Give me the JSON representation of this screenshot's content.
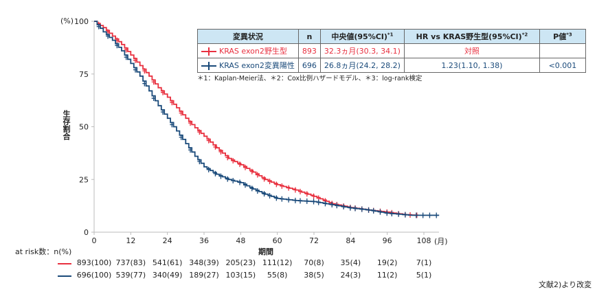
{
  "chart_data": {
    "type": "line",
    "subtype": "kaplan-meier",
    "xlabel": "期間",
    "x_unit": "(月)",
    "ylabel": "生存割合",
    "y_unit": "(%)",
    "xlim": [
      0,
      108
    ],
    "ylim": [
      0,
      100
    ],
    "xticks": [
      0,
      12,
      24,
      36,
      48,
      60,
      72,
      84,
      96,
      108
    ],
    "yticks": [
      0,
      25,
      50,
      75,
      100
    ],
    "grid": false,
    "series": [
      {
        "name": "KRAS exon2野生型",
        "color": "#e8303f",
        "points": [
          [
            0,
            100
          ],
          [
            3,
            97
          ],
          [
            6,
            93
          ],
          [
            9,
            89
          ],
          [
            12,
            84
          ],
          [
            15,
            79
          ],
          [
            18,
            74
          ],
          [
            21,
            68.5
          ],
          [
            24,
            64
          ],
          [
            27,
            59
          ],
          [
            30,
            54
          ],
          [
            33,
            49.5
          ],
          [
            36,
            45.5
          ],
          [
            40,
            40
          ],
          [
            44,
            35
          ],
          [
            48,
            32
          ],
          [
            52,
            28.5
          ],
          [
            56,
            25
          ],
          [
            60,
            22.5
          ],
          [
            66,
            20
          ],
          [
            72,
            17
          ],
          [
            78,
            13.5
          ],
          [
            84,
            11.7
          ],
          [
            90,
            10.5
          ],
          [
            96,
            9.5
          ],
          [
            102,
            8.3
          ],
          [
            106,
            8
          ]
        ]
      },
      {
        "name": "KRAS exon2変異陽性",
        "color": "#1a4a7a",
        "points": [
          [
            0,
            100
          ],
          [
            3,
            95
          ],
          [
            6,
            91
          ],
          [
            9,
            86
          ],
          [
            12,
            80
          ],
          [
            15,
            74
          ],
          [
            18,
            67
          ],
          [
            21,
            60
          ],
          [
            24,
            54
          ],
          [
            27,
            48
          ],
          [
            30,
            42
          ],
          [
            33,
            36
          ],
          [
            36,
            31
          ],
          [
            40,
            27.5
          ],
          [
            44,
            25
          ],
          [
            48,
            23.5
          ],
          [
            52,
            20.5
          ],
          [
            56,
            18
          ],
          [
            60,
            16
          ],
          [
            66,
            15
          ],
          [
            72,
            14.5
          ],
          [
            78,
            13
          ],
          [
            84,
            11.5
          ],
          [
            90,
            10.5
          ],
          [
            96,
            9
          ],
          [
            104,
            8
          ],
          [
            113,
            8
          ]
        ]
      }
    ]
  },
  "table": {
    "headers": [
      "変異状況",
      "n",
      "中央値(95%CI)",
      "HR vs KRAS野生型(95%CI)",
      "P値"
    ],
    "header_sups": [
      "",
      "",
      "*1",
      "*2",
      "*3"
    ],
    "rows": [
      {
        "label": "KRAS exon2野生型",
        "n": "893",
        "median": "32.3ヵ月(30.3, 34.1)",
        "hr": "対照",
        "p": ""
      },
      {
        "label": "KRAS exon2変異陽性",
        "n": "696",
        "median": "26.8ヵ月(24.2, 28.2)",
        "hr": "1.23(1.10, 1.38)",
        "p": "<0.001"
      }
    ],
    "footnote": "＊1：Kaplan-Meier法、＊2：Cox比例ハザードモデル、＊3：log-rank検定"
  },
  "at_risk": {
    "label": "at risk数：n(%)",
    "rows": [
      {
        "color": "#e8303f",
        "values": [
          "893(100)",
          "737(83)",
          "541(61)",
          "348(39)",
          "205(23)",
          "111(12)",
          "70(8)",
          "35(4)",
          "19(2)",
          "7(1)"
        ]
      },
      {
        "color": "#1a4a7a",
        "values": [
          "696(100)",
          "539(77)",
          "340(49)",
          "189(27)",
          "103(15)",
          "55(8)",
          "38(5)",
          "24(3)",
          "11(2)",
          "5(1)"
        ]
      }
    ]
  },
  "source": "文献2)より改変"
}
